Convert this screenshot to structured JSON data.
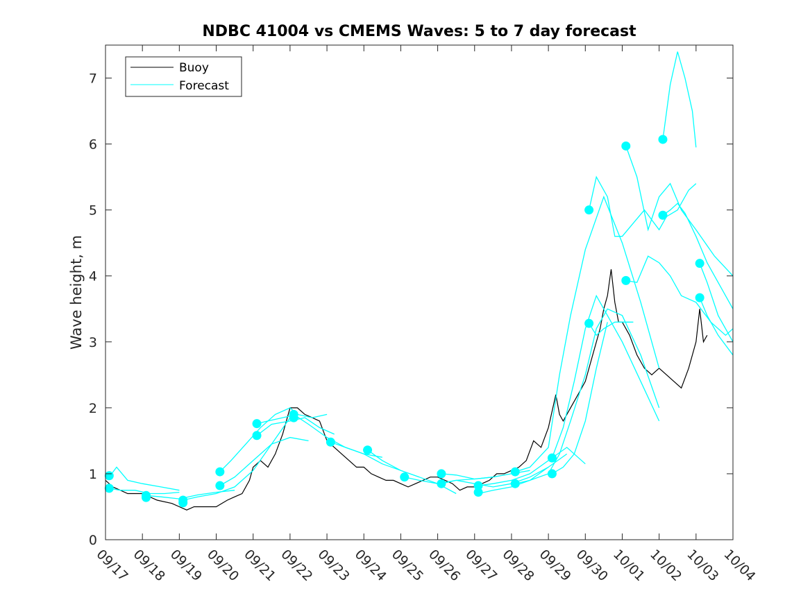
{
  "chart_data": {
    "type": "line",
    "title": "NDBC 41004 vs CMEMS Waves: 5 to 7 day forecast",
    "xlabel": "",
    "ylabel": "Wave height, m",
    "xlim": [
      0,
      17
    ],
    "ylim": [
      0,
      7.5
    ],
    "x_tick_labels": [
      "09/17",
      "09/18",
      "09/19",
      "09/20",
      "09/21",
      "09/22",
      "09/23",
      "09/24",
      "09/25",
      "09/26",
      "09/27",
      "09/28",
      "09/29",
      "09/30",
      "10/01",
      "10/02",
      "10/03",
      "10/04"
    ],
    "y_ticks": [
      0,
      1,
      2,
      3,
      4,
      5,
      6,
      7
    ],
    "legend": {
      "position": "top-left",
      "entries": [
        "Buoy",
        "Forecast"
      ]
    },
    "colors": {
      "buoy": "#000000",
      "forecast": "#00ffff",
      "axis": "#262626"
    },
    "buoy": {
      "name": "Buoy",
      "x": [
        0,
        0.2,
        0.4,
        0.6,
        1.0,
        1.4,
        1.8,
        2.0,
        2.2,
        2.4,
        2.6,
        3.0,
        3.3,
        3.5,
        3.7,
        3.9,
        4.0,
        4.2,
        4.4,
        4.6,
        4.8,
        5.0,
        5.2,
        5.4,
        5.6,
        5.8,
        6.0,
        6.2,
        6.4,
        6.6,
        6.8,
        7.0,
        7.2,
        7.4,
        7.6,
        7.8,
        8.0,
        8.2,
        8.4,
        8.6,
        8.8,
        9.0,
        9.2,
        9.4,
        9.6,
        9.8,
        10.0,
        10.2,
        10.4,
        10.6,
        10.8,
        11.0,
        11.2,
        11.4,
        11.6,
        11.8,
        12.0,
        12.2,
        12.3,
        12.4,
        12.5,
        12.6,
        12.8,
        13.0,
        13.2,
        13.4,
        13.5,
        13.6,
        13.7,
        13.8,
        13.9,
        14.0,
        14.2,
        14.4,
        14.6,
        14.8,
        15.0,
        15.2,
        15.4,
        15.6,
        15.8,
        16.0,
        16.1,
        16.2,
        16.3
      ],
      "y": [
        0.9,
        0.8,
        0.75,
        0.7,
        0.7,
        0.6,
        0.55,
        0.5,
        0.45,
        0.5,
        0.5,
        0.5,
        0.6,
        0.65,
        0.7,
        0.9,
        1.1,
        1.2,
        1.1,
        1.3,
        1.6,
        2.0,
        2.0,
        1.9,
        1.85,
        1.8,
        1.5,
        1.4,
        1.3,
        1.2,
        1.1,
        1.1,
        1.0,
        0.95,
        0.9,
        0.9,
        0.85,
        0.8,
        0.85,
        0.9,
        0.95,
        0.95,
        0.9,
        0.85,
        0.75,
        0.8,
        0.8,
        0.85,
        0.9,
        1.0,
        1.0,
        1.05,
        1.1,
        1.2,
        1.5,
        1.4,
        1.7,
        2.2,
        1.9,
        1.8,
        1.9,
        2.0,
        2.2,
        2.4,
        2.8,
        3.2,
        3.5,
        3.7,
        4.1,
        3.6,
        3.3,
        3.3,
        3.1,
        2.8,
        2.6,
        2.5,
        2.6,
        2.5,
        2.4,
        2.3,
        2.6,
        3.0,
        3.5,
        3.0,
        3.1
      ]
    },
    "forecast_series": [
      {
        "x": [
          0.1,
          0.3,
          0.6,
          1.0,
          1.5,
          2.0
        ],
        "y": [
          0.95,
          1.1,
          0.9,
          0.85,
          0.8,
          0.75
        ]
      },
      {
        "x": [
          0.1,
          0.4,
          0.8,
          1.2,
          1.6,
          2.0
        ],
        "y": [
          0.78,
          0.75,
          0.75,
          0.7,
          0.7,
          0.72
        ]
      },
      {
        "x": [
          1.1,
          1.5,
          2.0,
          2.5,
          3.0,
          3.5
        ],
        "y": [
          0.67,
          0.65,
          0.62,
          0.68,
          0.72,
          0.75
        ]
      },
      {
        "x": [
          2.1,
          2.5,
          3.0,
          3.5,
          4.0,
          4.5,
          5.0
        ],
        "y": [
          0.6,
          0.65,
          0.7,
          0.8,
          1.05,
          1.45,
          1.85
        ]
      },
      {
        "x": [
          3.1,
          3.4,
          3.8,
          4.2,
          4.6,
          5.0,
          5.2
        ],
        "y": [
          1.03,
          1.2,
          1.45,
          1.7,
          1.9,
          2.0,
          1.9
        ]
      },
      {
        "x": [
          3.1,
          3.5,
          4.0,
          4.5,
          5.0,
          5.5
        ],
        "y": [
          0.82,
          0.95,
          1.2,
          1.45,
          1.55,
          1.5
        ]
      },
      {
        "x": [
          4.1,
          4.4,
          4.8,
          5.2,
          5.6,
          6.0
        ],
        "y": [
          1.76,
          1.8,
          1.85,
          1.9,
          1.85,
          1.9
        ]
      },
      {
        "x": [
          4.1,
          4.5,
          5.0,
          5.4,
          5.8,
          6.2
        ],
        "y": [
          1.58,
          1.75,
          1.8,
          1.85,
          1.7,
          1.6
        ]
      },
      {
        "x": [
          5.1,
          5.5,
          6.0,
          6.5,
          7.0,
          7.5
        ],
        "y": [
          1.9,
          1.75,
          1.55,
          1.4,
          1.3,
          1.25
        ]
      },
      {
        "x": [
          6.1,
          6.5,
          7.0,
          7.5,
          8.0,
          8.5
        ],
        "y": [
          1.48,
          1.4,
          1.3,
          1.15,
          1.05,
          0.95
        ]
      },
      {
        "x": [
          7.1,
          7.5,
          8.0,
          8.5,
          9.0,
          9.5
        ],
        "y": [
          1.36,
          1.2,
          1.05,
          0.95,
          0.85,
          0.7
        ]
      },
      {
        "x": [
          8.1,
          8.5,
          9.0,
          9.5,
          10.0,
          10.5
        ],
        "y": [
          0.95,
          0.9,
          0.85,
          0.9,
          0.92,
          0.95
        ]
      },
      {
        "x": [
          9.1,
          9.5,
          10.0,
          10.5,
          11.0,
          11.5
        ],
        "y": [
          1.0,
          0.98,
          0.92,
          0.95,
          1.0,
          1.05
        ]
      },
      {
        "x": [
          9.1,
          9.5,
          10.0,
          10.5,
          11.0,
          11.5,
          12.0
        ],
        "y": [
          0.85,
          0.9,
          0.85,
          0.8,
          0.85,
          0.95,
          1.1
        ]
      },
      {
        "x": [
          10.1,
          10.5,
          11.0,
          11.5,
          12.0,
          12.5,
          13.0
        ],
        "y": [
          0.82,
          0.85,
          0.9,
          1.0,
          1.2,
          1.4,
          1.15
        ]
      },
      {
        "x": [
          10.1,
          10.5,
          11.0,
          11.5,
          12.0,
          12.5
        ],
        "y": [
          0.7,
          0.75,
          0.8,
          0.9,
          1.1,
          1.3
        ]
      },
      {
        "x": [
          11.1,
          11.5,
          12.0,
          12.3,
          12.6,
          13.0,
          13.5,
          14.0,
          14.5,
          15.0
        ],
        "y": [
          1.03,
          1.1,
          1.4,
          2.5,
          3.4,
          4.4,
          5.2,
          4.5,
          3.6,
          2.6
        ]
      },
      {
        "x": [
          11.1,
          11.5,
          12.0,
          12.3,
          12.6,
          13.0,
          13.3,
          13.6,
          14.0,
          14.5,
          15.0
        ],
        "y": [
          0.85,
          0.9,
          1.0,
          1.3,
          1.8,
          2.5,
          3.2,
          3.5,
          3.4,
          2.8,
          2.0
        ]
      },
      {
        "x": [
          12.1,
          12.4,
          12.7,
          13.0,
          13.3,
          13.6,
          14.0,
          14.5,
          15.0
        ],
        "y": [
          1.24,
          1.7,
          2.4,
          3.2,
          3.7,
          3.4,
          3.0,
          2.4,
          1.8
        ]
      },
      {
        "x": [
          12.1,
          12.4,
          12.7,
          13.0,
          13.3,
          13.6
        ],
        "y": [
          1.0,
          1.1,
          1.3,
          1.8,
          2.6,
          3.3
        ]
      },
      {
        "x": [
          13.1,
          13.3,
          13.6,
          13.8,
          14.0,
          14.3,
          14.6,
          15.0,
          15.2,
          15.5,
          15.8,
          16.0
        ],
        "y": [
          5.0,
          5.5,
          5.2,
          4.6,
          4.6,
          4.8,
          5.0,
          4.7,
          4.9,
          5.0,
          5.3,
          5.4
        ]
      },
      {
        "x": [
          13.1,
          13.3,
          13.5,
          13.8,
          14.0,
          14.3
        ],
        "y": [
          3.28,
          3.1,
          3.2,
          3.3,
          3.3,
          3.3
        ]
      },
      {
        "x": [
          14.1,
          14.4,
          14.7,
          15.0,
          15.3,
          15.6,
          16.0,
          16.5,
          17.0
        ],
        "y": [
          5.97,
          5.5,
          4.7,
          5.2,
          5.4,
          5.0,
          4.7,
          4.3,
          4.0
        ]
      },
      {
        "x": [
          14.1,
          14.4,
          14.7,
          15.0,
          15.3,
          15.6,
          16.0,
          16.4,
          16.8,
          17.0
        ],
        "y": [
          3.93,
          3.9,
          4.3,
          4.2,
          4.0,
          3.7,
          3.6,
          3.3,
          3.1,
          3.2
        ]
      },
      {
        "x": [
          15.1,
          15.3,
          15.5,
          15.7,
          15.9,
          16.0
        ],
        "y": [
          6.07,
          6.9,
          7.4,
          7.0,
          6.5,
          5.95
        ]
      },
      {
        "x": [
          15.1,
          15.3,
          15.5,
          15.7,
          16.0,
          16.3,
          16.6,
          17.0
        ],
        "y": [
          4.92,
          5.0,
          5.1,
          4.95,
          4.6,
          4.2,
          3.9,
          3.5
        ]
      },
      {
        "x": [
          16.1,
          16.3,
          16.6,
          17.0
        ],
        "y": [
          4.19,
          3.9,
          3.4,
          3.0
        ]
      },
      {
        "x": [
          16.1,
          16.3,
          16.6,
          17.0
        ],
        "y": [
          3.67,
          3.4,
          3.1,
          2.8
        ]
      }
    ],
    "markers": {
      "x": [
        0.1,
        0.1,
        1.1,
        1.1,
        2.1,
        2.1,
        3.1,
        3.1,
        4.1,
        4.1,
        5.1,
        5.1,
        6.1,
        7.1,
        8.1,
        9.1,
        9.1,
        10.1,
        10.1,
        11.1,
        11.1,
        12.1,
        12.1,
        13.1,
        13.1,
        14.1,
        14.1,
        15.1,
        15.1,
        16.1,
        16.1
      ],
      "y": [
        0.97,
        0.78,
        0.67,
        0.64,
        0.6,
        0.56,
        1.03,
        0.82,
        1.76,
        1.58,
        1.9,
        1.85,
        1.48,
        1.36,
        0.95,
        1.0,
        0.85,
        0.82,
        0.72,
        1.03,
        0.85,
        1.24,
        1.0,
        5.0,
        3.28,
        5.97,
        3.93,
        6.07,
        4.92,
        4.19,
        3.67
      ]
    }
  }
}
